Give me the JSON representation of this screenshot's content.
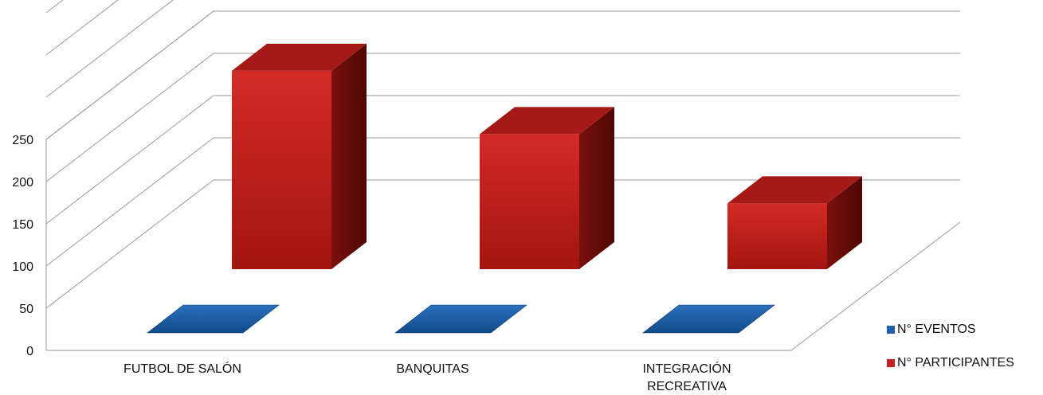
{
  "chart_data": {
    "type": "bar",
    "title": "",
    "xlabel": "",
    "ylabel": "",
    "categories": [
      "FUTBOL DE SALÓN",
      "BANQUITAS",
      "INTEGRACIÓN RECREATIVA"
    ],
    "category_lines": [
      [
        "FUTBOL DE SALÓN"
      ],
      [
        "BANQUITAS"
      ],
      [
        "INTEGRACIÓN",
        "RECREATIVA"
      ]
    ],
    "series": [
      {
        "name": "N° EVENTOS",
        "values": [
          1,
          1,
          1
        ],
        "color": "#1f5fa8"
      },
      {
        "name": "N° PARTICIPANTES",
        "values": [
          235,
          160,
          78
        ],
        "color": "#c8201e"
      }
    ],
    "y_ticks": [
      "0",
      "50",
      "100",
      "150",
      "200",
      "250"
    ],
    "ylim": [
      0,
      400
    ],
    "grid": true,
    "three_d": true,
    "legend_position": "bottom-right"
  }
}
